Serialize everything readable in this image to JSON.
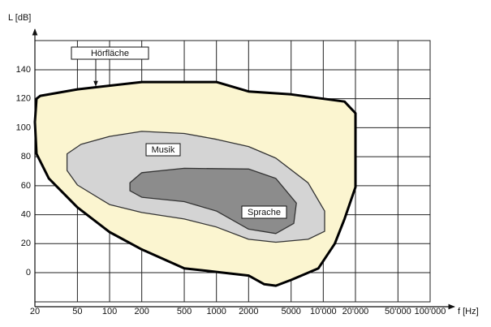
{
  "chart_data": {
    "type": "area",
    "ylabel": "L [dB]",
    "xlabel": "f [Hz]",
    "xscale": "log",
    "grid": true,
    "xlim": [
      20,
      100000
    ],
    "ylim": [
      -24,
      166
    ],
    "xticks": [
      20,
      50,
      100,
      200,
      500,
      1000,
      2000,
      5000,
      {
        "value": 10000,
        "label": "10'000"
      },
      {
        "value": 20000,
        "label": "20'000"
      },
      {
        "value": 50000,
        "label": "50'000"
      },
      {
        "value": 100000,
        "label": "100'000"
      }
    ],
    "yticks": [
      0,
      20,
      40,
      60,
      80,
      100,
      120,
      140
    ],
    "series": [
      {
        "name": "Hörfläche",
        "color": "#fbf5d0",
        "x": [
          20.7,
          22.5,
          50,
          200,
          1000,
          2000,
          5000,
          10000,
          15800,
          20000,
          20000,
          15800,
          12800,
          9000,
          5000,
          3600,
          2800,
          2000,
          1000,
          500,
          200,
          100,
          50,
          27,
          20.7,
          20
        ],
        "values": [
          120,
          122,
          126.5,
          131.5,
          131.5,
          125,
          123,
          120,
          118,
          110,
          59,
          37,
          20,
          3,
          -5,
          -9,
          -8,
          -2,
          0.5,
          3,
          16,
          28,
          45,
          65,
          82,
          104
        ]
      },
      {
        "name": "Musik",
        "color": "#d4d4d4",
        "x": [
          40,
          54,
          100,
          200,
          500,
          1000,
          2000,
          3600,
          7200,
          10300,
          10300,
          7200,
          3600,
          2000,
          1000,
          500,
          200,
          100,
          50,
          40
        ],
        "values": [
          82,
          88.5,
          94,
          97.5,
          96,
          92,
          87,
          79,
          62,
          42.5,
          28.5,
          23,
          21,
          23,
          31.5,
          37,
          41.5,
          47,
          60.5,
          70.5
        ]
      },
      {
        "name": "Sprache",
        "color": "#8c8c8c",
        "x": [
          155,
          200,
          500,
          2000,
          3600,
          5600,
          5300,
          3600,
          2000,
          1000,
          500,
          200,
          155
        ],
        "values": [
          62,
          69,
          72,
          71.5,
          65,
          48,
          34,
          27,
          30,
          42.5,
          49,
          52,
          56.5
        ]
      }
    ]
  }
}
